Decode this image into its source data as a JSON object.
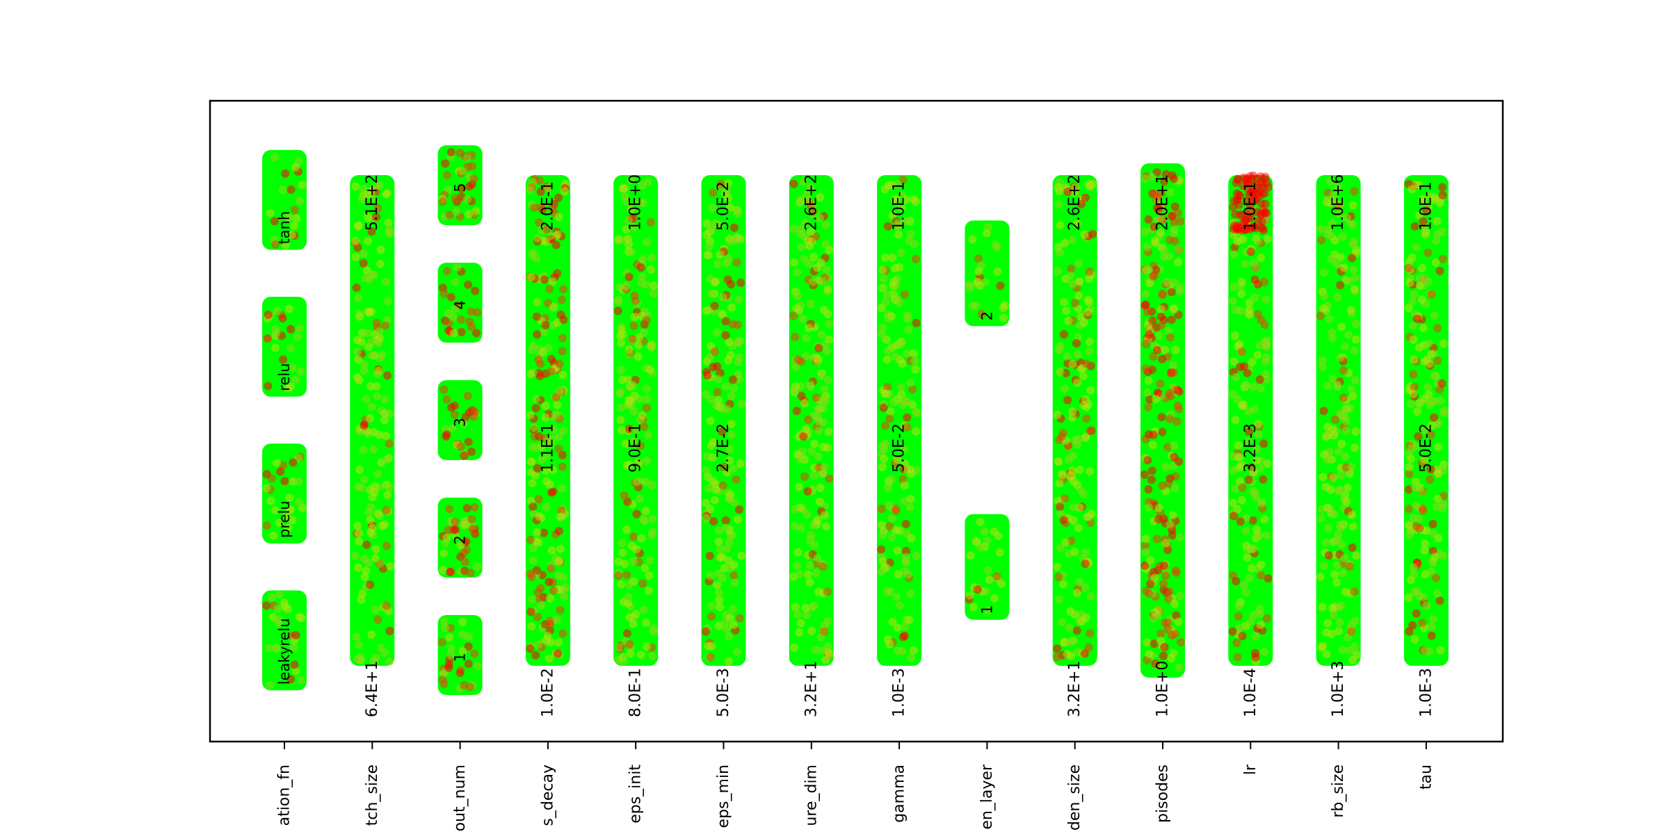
{
  "chart_data": {
    "type": "scatter",
    "title": "",
    "xlabel": "",
    "ylabel": "",
    "grid": false,
    "legend": "none",
    "colors": {
      "low": "#00ff00",
      "high": "#ff0000",
      "axes": "#000000",
      "background": "#ffffff"
    },
    "parameters": [
      {
        "name": "activation_fn",
        "kind": "categorical",
        "values": [
          "leakyrelu",
          "prelu",
          "relu",
          "tanh"
        ],
        "red_fraction": 0.08
      },
      {
        "name": "batch_size",
        "kind": "continuous",
        "labels": [
          "6.4E+1",
          "5.1E+2"
        ],
        "red_fraction": 0.06
      },
      {
        "name": "layer_num",
        "kind": "categorical",
        "values": [
          "1",
          "2",
          "3",
          "4",
          "5"
        ],
        "red_fraction": 0.3
      },
      {
        "name": "eps_decay",
        "kind": "continuous",
        "labels": [
          "1.0E-2",
          "1.1E-1",
          "2.0E-1"
        ],
        "red_fraction": 0.18
      },
      {
        "name": "eps_init",
        "kind": "continuous",
        "labels": [
          "8.0E-1",
          "9.0E-1",
          "1.0E+0"
        ],
        "red_fraction": 0.07
      },
      {
        "name": "eps_min",
        "kind": "continuous",
        "labels": [
          "5.0E-3",
          "2.7E-2",
          "5.0E-2"
        ],
        "red_fraction": 0.08
      },
      {
        "name": "feature_dim",
        "kind": "continuous",
        "labels": [
          "3.2E+1",
          "2.6E+2"
        ],
        "red_fraction": 0.07
      },
      {
        "name": "gamma",
        "kind": "continuous",
        "labels": [
          "1.0E-3",
          "5.0E-2",
          "1.0E-1"
        ],
        "red_fraction": 0.07
      },
      {
        "name": "hidden_layer",
        "kind": "categorical",
        "values": [
          "1",
          "2"
        ],
        "red_fraction": 0.03
      },
      {
        "name": "hidden_size",
        "kind": "continuous",
        "labels": [
          "3.2E+1",
          "2.6E+2"
        ],
        "red_fraction": 0.07
      },
      {
        "name": "episodes",
        "kind": "discrete",
        "labels": [
          "1.0E+0",
          "2.0E+1"
        ],
        "red_fraction": 0.3
      },
      {
        "name": "lr",
        "kind": "continuous",
        "labels": [
          "1.0E-4",
          "3.2E-3",
          "1.0E-1"
        ],
        "red_fraction": 0.1
      },
      {
        "name": "rb_size",
        "kind": "continuous",
        "labels": [
          "1.0E+3",
          "1.0E+6"
        ],
        "red_fraction": 0.05
      },
      {
        "name": "tau",
        "kind": "continuous",
        "labels": [
          "1.0E-3",
          "5.0E-2",
          "1.0E-1"
        ],
        "red_fraction": 0.12
      }
    ],
    "tick_labels": [
      "ation_fn",
      "tch_size",
      "out_num",
      "s_decay",
      "eps_init",
      "eps_min",
      "ure_dim",
      "gamma",
      "en_layer",
      "den_size",
      "pisodes",
      "lr",
      "rb_size",
      "tau"
    ]
  }
}
